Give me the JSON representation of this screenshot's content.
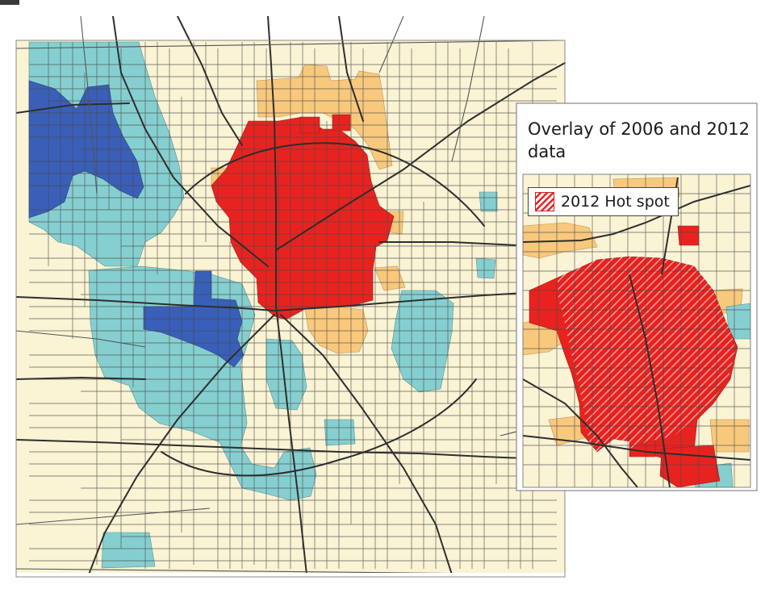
{
  "colors": {
    "background": "#faf3d4",
    "hot_spot": "#e8231f",
    "warm_spot": "#f8c97c",
    "cool_spot": "#86cfd0",
    "cold_spot": "#3a5fb8",
    "road": "#3a3a3a",
    "tract_border": "#4a4a4a"
  },
  "inset": {
    "title": "Overlay of 2006 and 2012 data",
    "legend": [
      {
        "label": "2012 Hot spot",
        "pattern": "red-diagonal-hatch"
      }
    ]
  }
}
